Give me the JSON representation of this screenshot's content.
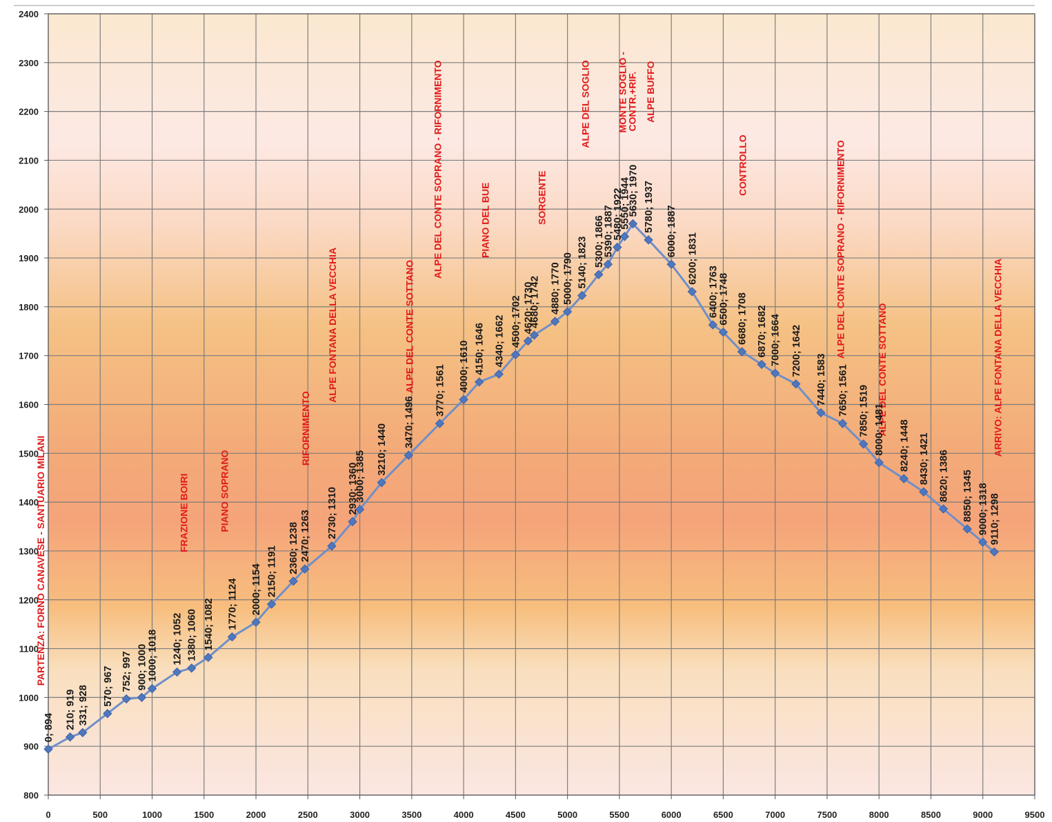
{
  "chart_data": {
    "type": "line",
    "title": "",
    "xlabel": "",
    "ylabel": "",
    "xlim": [
      0,
      9500
    ],
    "ylim": [
      800,
      2400
    ],
    "x_ticks": [
      0,
      500,
      1000,
      1500,
      2000,
      2500,
      3000,
      3500,
      4000,
      4500,
      5000,
      5500,
      6000,
      6500,
      7000,
      7500,
      8000,
      8500,
      9000,
      9500
    ],
    "y_ticks": [
      800,
      900,
      1000,
      1100,
      1200,
      1300,
      1400,
      1500,
      1600,
      1700,
      1800,
      1900,
      2000,
      2100,
      2200,
      2300,
      2400
    ],
    "grid": true,
    "legend": "none",
    "line_color": "#6f8fc8",
    "marker_color": "#4f77bd",
    "point_label_color": "#1a1a1a",
    "annotation_color": "#e01b1b",
    "series": [
      {
        "points": [
          {
            "x": 0,
            "y": 894,
            "label": "0; 894"
          },
          {
            "x": 210,
            "y": 919,
            "label": "210; 919"
          },
          {
            "x": 331,
            "y": 928,
            "label": "331; 928"
          },
          {
            "x": 570,
            "y": 967,
            "label": "570; 967"
          },
          {
            "x": 752,
            "y": 997,
            "label": "752; 997"
          },
          {
            "x": 900,
            "y": 1000,
            "label": "900; 1000"
          },
          {
            "x": 1000,
            "y": 1018,
            "label": "1000; 1018"
          },
          {
            "x": 1240,
            "y": 1052,
            "label": "1240; 1052"
          },
          {
            "x": 1380,
            "y": 1060,
            "label": "1380; 1060"
          },
          {
            "x": 1540,
            "y": 1082,
            "label": "1540; 1082"
          },
          {
            "x": 1770,
            "y": 1124,
            "label": "1770; 1124"
          },
          {
            "x": 2000,
            "y": 1154,
            "label": "2000; 1154"
          },
          {
            "x": 2150,
            "y": 1191,
            "label": "2150; 1191"
          },
          {
            "x": 2360,
            "y": 1238,
            "label": "2360; 1238"
          },
          {
            "x": 2470,
            "y": 1263,
            "label": "2470; 1263"
          },
          {
            "x": 2730,
            "y": 1310,
            "label": "2730; 1310"
          },
          {
            "x": 2930,
            "y": 1360,
            "label": "2930; 1360"
          },
          {
            "x": 3000,
            "y": 1385,
            "label": "3000; 1385"
          },
          {
            "x": 3210,
            "y": 1440,
            "label": "3210; 1440"
          },
          {
            "x": 3470,
            "y": 1496,
            "label": "3470; 1496"
          },
          {
            "x": 3770,
            "y": 1561,
            "label": "3770; 1561"
          },
          {
            "x": 4000,
            "y": 1610,
            "label": "4000; 1610"
          },
          {
            "x": 4150,
            "y": 1646,
            "label": "4150; 1646"
          },
          {
            "x": 4340,
            "y": 1662,
            "label": "4340; 1662"
          },
          {
            "x": 4500,
            "y": 1702,
            "label": "4500; 1702"
          },
          {
            "x": 4620,
            "y": 1730,
            "label": "4620; 1730"
          },
          {
            "x": 4680,
            "y": 1742,
            "label": "4680; 1742"
          },
          {
            "x": 4880,
            "y": 1770,
            "label": "4880; 1770"
          },
          {
            "x": 5000,
            "y": 1790,
            "label": "5000; 1790"
          },
          {
            "x": 5140,
            "y": 1823,
            "label": "5140; 1823"
          },
          {
            "x": 5300,
            "y": 1866,
            "label": "5300; 1866"
          },
          {
            "x": 5390,
            "y": 1887,
            "label": "5390; 1887"
          },
          {
            "x": 5480,
            "y": 1922,
            "label": "5480; 1922"
          },
          {
            "x": 5550,
            "y": 1944,
            "label": "5550; 1944"
          },
          {
            "x": 5630,
            "y": 1970,
            "label": "5630; 1970"
          },
          {
            "x": 5780,
            "y": 1937,
            "label": "5780; 1937"
          },
          {
            "x": 6000,
            "y": 1887,
            "label": "6000; 1887"
          },
          {
            "x": 6200,
            "y": 1831,
            "label": "6200; 1831"
          },
          {
            "x": 6400,
            "y": 1763,
            "label": "6400; 1763"
          },
          {
            "x": 6500,
            "y": 1748,
            "label": "6500; 1748"
          },
          {
            "x": 6680,
            "y": 1708,
            "label": "6680; 1708"
          },
          {
            "x": 6870,
            "y": 1682,
            "label": "6870; 1682"
          },
          {
            "x": 7000,
            "y": 1664,
            "label": "7000; 1664"
          },
          {
            "x": 7200,
            "y": 1642,
            "label": "7200; 1642"
          },
          {
            "x": 7440,
            "y": 1583,
            "label": "7440; 1583"
          },
          {
            "x": 7650,
            "y": 1561,
            "label": "7650; 1561"
          },
          {
            "x": 7850,
            "y": 1519,
            "label": "7850; 1519"
          },
          {
            "x": 8000,
            "y": 1481,
            "label": "8000; 1481"
          },
          {
            "x": 8240,
            "y": 1448,
            "label": "8240; 1448"
          },
          {
            "x": 8430,
            "y": 1421,
            "label": "8430; 1421"
          },
          {
            "x": 8620,
            "y": 1386,
            "label": "8620; 1386"
          },
          {
            "x": 8850,
            "y": 1345,
            "label": "8850; 1345"
          },
          {
            "x": 9000,
            "y": 1318,
            "label": "9000; 1318"
          },
          {
            "x": 9110,
            "y": 1298,
            "label": "9110; 1298"
          }
        ]
      }
    ],
    "annotations": [
      {
        "x": 0,
        "y": 894,
        "text": "PARTENZA: FORNO CANAVESE - SANTUARIO MILANI"
      },
      {
        "x": 1380,
        "y": 1060,
        "text": "FRAZIONE BOIRI"
      },
      {
        "x": 1770,
        "y": 1124,
        "text": "PIANO SOPRANO"
      },
      {
        "x": 2470,
        "y": 1263,
        "text": "RIFORNIMENTO"
      },
      {
        "x": 2730,
        "y": 1310,
        "text": "ALPE FONTANA DELLA VECCHIA"
      },
      {
        "x": 3470,
        "y": 1496,
        "text": "ALPE DEL CONTE SOTTANO"
      },
      {
        "x": 3770,
        "y": 1561,
        "text": "ALPE DEL CONTE SOPRANO - RIFORNIMENTO"
      },
      {
        "x": 4150,
        "y": 1646,
        "text": "PIANO DEL BUE"
      },
      {
        "x": 4680,
        "y": 1742,
        "text": "SORGENTE"
      },
      {
        "x": 5140,
        "y": 1823,
        "text": "ALPE DEL SOGLIO"
      },
      {
        "x": 5630,
        "y": 1970,
        "text": "MONTE SOGLIO -"
      },
      {
        "x": 5630,
        "y": 1970,
        "text": "CONTR.+RIF."
      },
      {
        "x": 5780,
        "y": 1937,
        "text": "ALPE BUFFO"
      },
      {
        "x": 6680,
        "y": 1708,
        "text": "CONTROLLO"
      },
      {
        "x": 7650,
        "y": 1561,
        "text": "ALPE DEL CONTE SOPRANO - RIFORNIMENTO"
      },
      {
        "x": 8000,
        "y": 1481,
        "text": "ALPE DEL CONTE SOTTANO"
      },
      {
        "x": 9110,
        "y": 1298,
        "text": "ARRIVO: ALPE FONTANA DELLA VECCHIA"
      }
    ]
  }
}
